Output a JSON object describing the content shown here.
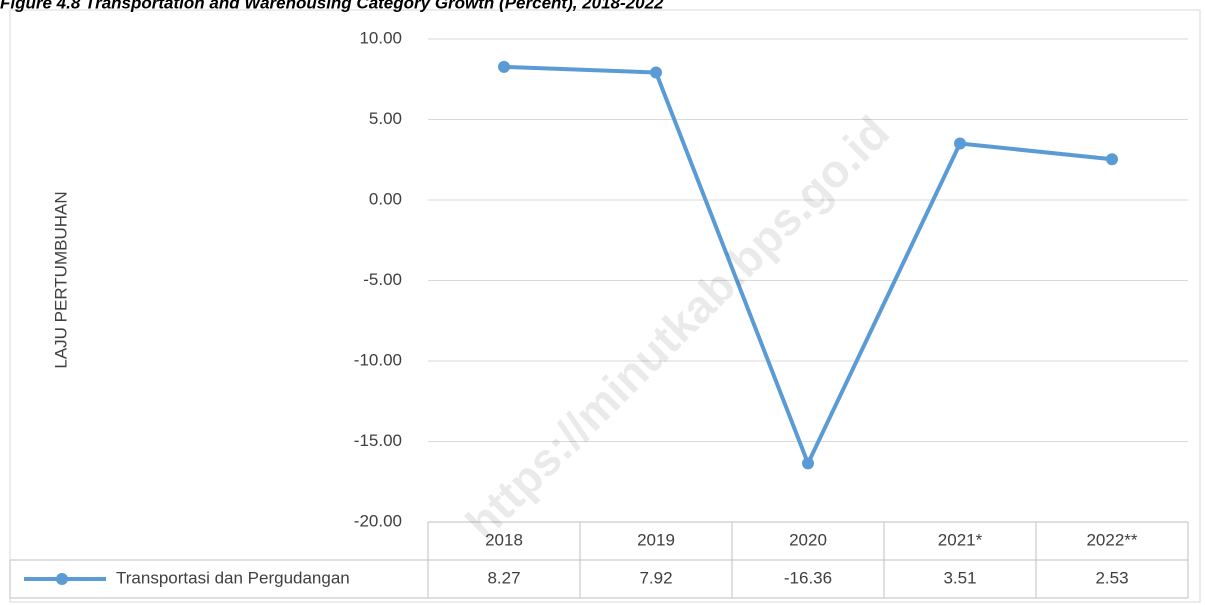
{
  "chart_data": {
    "type": "line",
    "title": "Figure    4.8        Transportation and Warehousing Category Growth (Percent), 2018-2022",
    "y_label": "LAJU PERTUMBUHAN",
    "watermark": "https://minutkab.bps.go.id",
    "categories": [
      "2018",
      "2019",
      "2020",
      "2021*",
      "2022**"
    ],
    "series": [
      {
        "name": "Transportasi dan Pergudangan",
        "color": "#5b9bd5",
        "values": [
          8.27,
          7.92,
          -16.36,
          3.51,
          2.53
        ]
      }
    ],
    "ylim": [
      -20,
      10
    ],
    "yticks": [
      {
        "value": -20,
        "label": "-20.00"
      },
      {
        "value": -15,
        "label": "-15.00"
      },
      {
        "value": -10,
        "label": "-10.00"
      },
      {
        "value": -5,
        "label": "-5.00"
      },
      {
        "value": 0,
        "label": "0.00"
      },
      {
        "value": 5,
        "label": "5.00"
      },
      {
        "value": 10,
        "label": "10.00"
      }
    ],
    "grid": true,
    "data_table": true
  }
}
